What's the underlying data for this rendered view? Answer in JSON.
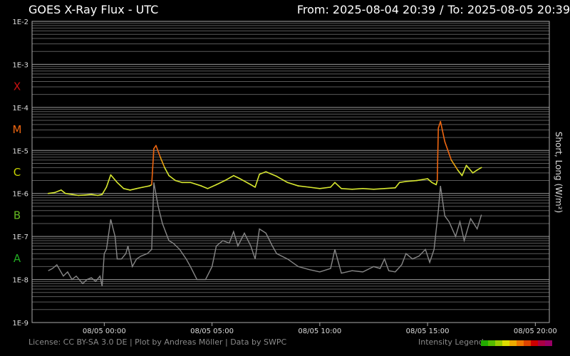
{
  "header": {
    "title": "GOES X-Ray Flux - UTC",
    "from_label": "From: 2025-08-04 20:39",
    "separator": "/",
    "to_label": "To: 2025-08-05 20:39"
  },
  "footer": {
    "credits": "License: CC BY-SA 3.0 DE | Plot by Andreas Möller | Data by SWPC",
    "legend_label": "Intensity Legend",
    "legend_colors": [
      "#22aa00",
      "#55bb00",
      "#99cc00",
      "#dddd00",
      "#eeaa00",
      "#ee7700",
      "#dd4400",
      "#cc0000",
      "#aa0044",
      "#990066"
    ]
  },
  "chart_data": {
    "type": "line",
    "title": "GOES X-Ray Flux - UTC",
    "ylabel": "Short, Long (W/m²)",
    "xlabel": "",
    "y_scale": "log",
    "ylim": [
      1e-09,
      0.01
    ],
    "y_tick_labels": [
      "1E-2",
      "1E-3",
      "1E-4",
      "1E-5",
      "1E-6",
      "1E-7",
      "1E-8",
      "1E-9"
    ],
    "y_tick_values": [
      0.01,
      0.001,
      0.0001,
      1e-05,
      1e-06,
      1e-07,
      1e-08,
      1e-09
    ],
    "x_range_hours": [
      -3.35,
      20.65
    ],
    "x_tick_labels": [
      "08/05 00:00",
      "08/05 05:00",
      "08/05 10:00",
      "08/05 15:00",
      "08/05 20:00"
    ],
    "x_tick_hours": [
      0,
      5,
      10,
      15,
      20
    ],
    "flare_classes": [
      {
        "label": "X",
        "flux": 0.00032,
        "color": "#cc1111"
      },
      {
        "label": "M",
        "flux": 3.2e-05,
        "color": "#ee6611"
      },
      {
        "label": "C",
        "flux": 3.2e-06,
        "color": "#c8d400"
      },
      {
        "label": "B",
        "flux": 3.2e-07,
        "color": "#66bb22"
      },
      {
        "label": "A",
        "flux": 3.2e-08,
        "color": "#22aa22"
      }
    ],
    "grid": true,
    "series": [
      {
        "name": "Long",
        "color": "#d8e830",
        "x": [
          -2.6,
          -2.3,
          -2.0,
          -1.8,
          -1.5,
          -1.2,
          -0.9,
          -0.6,
          -0.3,
          -0.1,
          0.1,
          0.3,
          0.6,
          0.9,
          1.2,
          1.5,
          1.8,
          2.1,
          2.2,
          2.3,
          2.4,
          2.6,
          2.8,
          3.0,
          3.3,
          3.6,
          4.0,
          4.5,
          4.8,
          5.2,
          5.6,
          6.0,
          6.3,
          6.8,
          7.0,
          7.2,
          7.5,
          8.0,
          8.5,
          9.0,
          9.5,
          10.0,
          10.5,
          10.7,
          11.0,
          11.5,
          12.0,
          12.5,
          13.0,
          13.5,
          13.7,
          14.0,
          14.5,
          15.0,
          15.2,
          15.4,
          15.45,
          15.5,
          15.6,
          15.8,
          16.1,
          16.4,
          16.6,
          16.8,
          17.1,
          17.3,
          17.5
        ],
        "y": [
          1e-06,
          1.05e-06,
          1.2e-06,
          1e-06,
          9.5e-07,
          9e-07,
          9.2e-07,
          9.5e-07,
          9e-07,
          9.5e-07,
          1.4e-06,
          2.7e-06,
          1.8e-06,
          1.3e-06,
          1.2e-06,
          1.3e-06,
          1.4e-06,
          1.5e-06,
          1.6e-06,
          1.1e-05,
          1.3e-05,
          7e-06,
          4e-06,
          2.6e-06,
          2e-06,
          1.8e-06,
          1.8e-06,
          1.5e-06,
          1.3e-06,
          1.6e-06,
          2e-06,
          2.6e-06,
          2.2e-06,
          1.6e-06,
          1.4e-06,
          2.8e-06,
          3.2e-06,
          2.5e-06,
          1.8e-06,
          1.5e-06,
          1.4e-06,
          1.3e-06,
          1.4e-06,
          1.8e-06,
          1.3e-06,
          1.25e-06,
          1.3e-06,
          1.25e-06,
          1.3e-06,
          1.35e-06,
          1.8e-06,
          1.9e-06,
          2e-06,
          2.2e-06,
          1.8e-06,
          1.6e-06,
          2e-06,
          3.3e-05,
          4.7e-05,
          1.6e-05,
          6e-06,
          3.5e-06,
          2.6e-06,
          4.5e-06,
          3e-06,
          3.5e-06,
          4e-06
        ]
      },
      {
        "name": "Short",
        "color": "#888888",
        "x": [
          -2.6,
          -2.4,
          -2.2,
          -1.9,
          -1.7,
          -1.5,
          -1.3,
          -1.0,
          -0.8,
          -0.6,
          -0.4,
          -0.2,
          -0.1,
          0.0,
          0.1,
          0.3,
          0.5,
          0.6,
          0.8,
          1.0,
          1.1,
          1.3,
          1.5,
          1.7,
          2.0,
          2.2,
          2.3,
          2.5,
          2.7,
          3.0,
          3.2,
          3.5,
          3.8,
          4.0,
          4.3,
          4.7,
          5.0,
          5.2,
          5.5,
          5.8,
          6.0,
          6.2,
          6.5,
          6.8,
          7.0,
          7.2,
          7.5,
          7.8,
          8.0,
          8.5,
          9.0,
          9.5,
          10.0,
          10.5,
          10.7,
          11.0,
          11.5,
          12.0,
          12.5,
          12.8,
          13.0,
          13.2,
          13.5,
          13.8,
          14.0,
          14.3,
          14.6,
          14.9,
          15.1,
          15.3,
          15.5,
          15.6,
          15.8,
          16.0,
          16.3,
          16.5,
          16.7,
          17.0,
          17.3,
          17.5
        ],
        "y": [
          1.6e-08,
          1.8e-08,
          2.2e-08,
          1.2e-08,
          1.5e-08,
          1e-08,
          1.2e-08,
          8e-09,
          1e-08,
          1.1e-08,
          9e-09,
          1.2e-08,
          7e-09,
          4e-08,
          5e-08,
          2.5e-07,
          1e-07,
          3e-08,
          3e-08,
          4e-08,
          6e-08,
          2e-08,
          3e-08,
          3.5e-08,
          4e-08,
          5e-08,
          1.8e-06,
          5e-07,
          2e-07,
          8e-08,
          7e-08,
          5e-08,
          3e-08,
          2e-08,
          1e-08,
          1e-08,
          2e-08,
          6e-08,
          8e-08,
          7e-08,
          1.3e-07,
          6e-08,
          1.2e-07,
          6e-08,
          3e-08,
          1.5e-07,
          1.2e-07,
          6e-08,
          4e-08,
          3e-08,
          2e-08,
          1.7e-08,
          1.5e-08,
          1.8e-08,
          5e-08,
          1.4e-08,
          1.6e-08,
          1.5e-08,
          2e-08,
          1.8e-08,
          3e-08,
          1.6e-08,
          1.5e-08,
          2.2e-08,
          4e-08,
          3e-08,
          3.5e-08,
          5e-08,
          2.5e-08,
          5e-08,
          4e-07,
          1.5e-06,
          3e-07,
          2.2e-07,
          1e-07,
          2.2e-07,
          8e-08,
          2.6e-07,
          1.5e-07,
          3.2e-07
        ]
      }
    ]
  }
}
